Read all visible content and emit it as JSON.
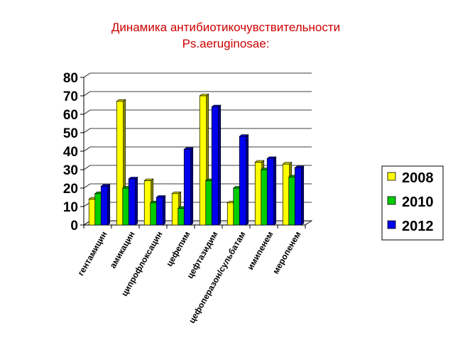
{
  "chart_data": {
    "type": "bar",
    "title": "Динамика антибиотикочувствительности",
    "subtitle": "Ps.aeruginosae:",
    "xlabel": "",
    "ylabel": "",
    "ylim": [
      0,
      80
    ],
    "yticks": [
      "0",
      "10",
      "20",
      "30",
      "40",
      "50",
      "60",
      "70",
      "80"
    ],
    "grid": true,
    "legend_position": "right",
    "categories": [
      "гентамицин",
      "амикацин",
      "ципрофлоксацин",
      "цефепим",
      "цефтазидим",
      "цефоперазон/сульбатам",
      "имипенем",
      "меропенем"
    ],
    "series": [
      {
        "name": "2008",
        "color": "#ffff00",
        "values": [
          14,
          67,
          24,
          17,
          70,
          12,
          34,
          33
        ]
      },
      {
        "name": "2010",
        "color": "#00cc00",
        "values": [
          17,
          20,
          12,
          9,
          24,
          20,
          30,
          26
        ]
      },
      {
        "name": "2012",
        "color": "#0000ee",
        "values": [
          21,
          25,
          15,
          41,
          64,
          48,
          36,
          31
        ]
      }
    ]
  }
}
